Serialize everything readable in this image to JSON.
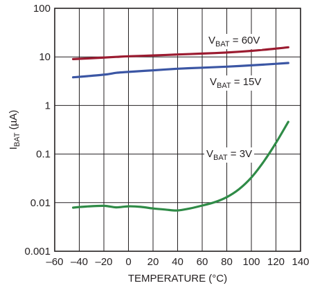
{
  "chart_data": {
    "type": "line",
    "xlabel": "TEMPERATURE (°C)",
    "ylabel": {
      "main": "I",
      "sub": "BAT",
      "unit": " (µA)"
    },
    "xlim": [
      -60,
      140
    ],
    "ylim": [
      0.001,
      100
    ],
    "yscale": "log",
    "x_ticks": [
      -60,
      -40,
      -20,
      0,
      20,
      40,
      60,
      80,
      100,
      120,
      140
    ],
    "x_tick_labels": [
      "–60",
      "–40",
      "–20",
      "0",
      "20",
      "40",
      "60",
      "80",
      "100",
      "120",
      "140"
    ],
    "y_ticks": [
      0.001,
      0.01,
      0.1,
      1,
      10,
      100
    ],
    "y_tick_labels": [
      "0.001",
      "0.01",
      "0.1",
      "1",
      "10",
      "100"
    ],
    "grid": true,
    "series": [
      {
        "label": {
          "main": "V",
          "sub": "BAT",
          "rest": " = 60V"
        },
        "color": "#9b1b30",
        "x": [
          -45,
          -30,
          -10,
          0,
          20,
          40,
          60,
          80,
          100,
          120,
          130
        ],
        "y": [
          9.0,
          9.4,
          10.0,
          10.3,
          10.7,
          11.2,
          11.7,
          12.3,
          13.3,
          14.8,
          15.8
        ]
      },
      {
        "label": {
          "main": "V",
          "sub": "BAT",
          "rest": " = 15V"
        },
        "color": "#3b56a4",
        "x": [
          -45,
          -20,
          -10,
          0,
          20,
          40,
          60,
          80,
          100,
          120,
          130
        ],
        "y": [
          3.8,
          4.3,
          4.7,
          4.9,
          5.3,
          5.7,
          6.0,
          6.3,
          6.7,
          7.2,
          7.5
        ]
      },
      {
        "label": {
          "main": "V",
          "sub": "BAT",
          "rest": " = 3V"
        },
        "color": "#2f8b47",
        "x": [
          -45,
          -35,
          -20,
          -10,
          0,
          10,
          20,
          30,
          40,
          50,
          60,
          70,
          80,
          90,
          100,
          110,
          120,
          130
        ],
        "y": [
          0.0079,
          0.0083,
          0.0086,
          0.008,
          0.0084,
          0.0082,
          0.0076,
          0.0072,
          0.0069,
          0.0076,
          0.0087,
          0.0102,
          0.013,
          0.019,
          0.033,
          0.07,
          0.17,
          0.46
        ]
      }
    ]
  }
}
